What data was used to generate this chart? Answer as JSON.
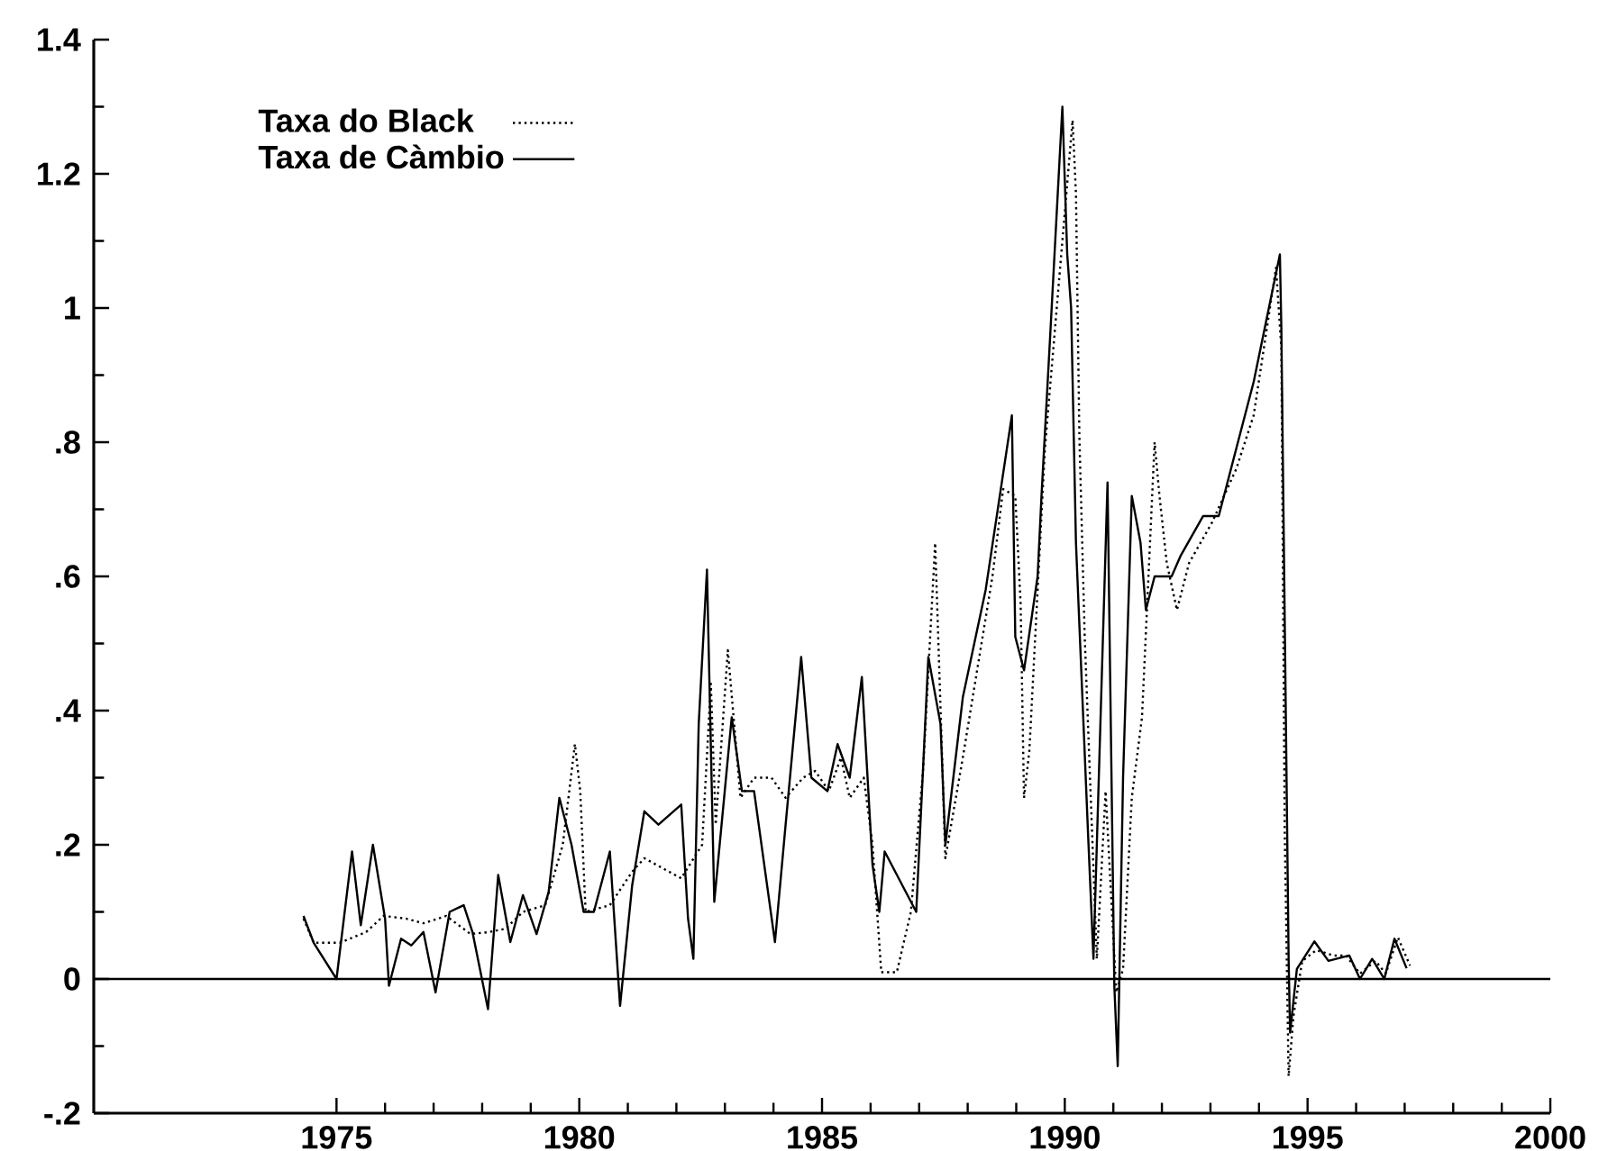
{
  "chart_data": {
    "type": "line",
    "xlim": [
      1970,
      2000
    ],
    "ylim": [
      -0.2,
      1.4
    ],
    "xticks": [
      1975,
      1980,
      1985,
      1990,
      1995,
      2000
    ],
    "yticks": [
      {
        "value": -0.2,
        "label": "-.2"
      },
      0,
      {
        "value": 0.2,
        "label": ".2"
      },
      {
        "value": 0.4,
        "label": ".4"
      },
      {
        "value": 0.6,
        "label": ".6"
      },
      {
        "value": 0.8,
        "label": ".8"
      },
      1,
      {
        "value": 1.2,
        "label": "1.2"
      },
      {
        "value": 1.4,
        "label": "1.4"
      }
    ],
    "legend": "top left",
    "grid": false,
    "ref_lines": [
      {
        "axis": "y",
        "value": 0,
        "color": "#000000",
        "line_style": "solid"
      }
    ],
    "series": [
      {
        "name": "Taxa do Black",
        "color": "#000000",
        "line_style": "dotted",
        "x": [
          1974.32,
          1974.53,
          1975.07,
          1975.61,
          1975.97,
          1976.43,
          1976.79,
          1977.26,
          1977.76,
          1978.15,
          1978.48,
          1978.84,
          1979.3,
          1979.66,
          1979.91,
          1980.02,
          1980.13,
          1980.63,
          1981.09,
          1981.34,
          1982.1,
          1982.53,
          1982.71,
          1982.81,
          1983.06,
          1983.32,
          1983.6,
          1983.96,
          1984.25,
          1984.61,
          1984.86,
          1985.14,
          1985.39,
          1985.57,
          1985.86,
          1986.04,
          1986.22,
          1986.54,
          1986.83,
          1987.08,
          1987.33,
          1987.54,
          1987.9,
          1988.51,
          1988.73,
          1988.98,
          1989.09,
          1989.16,
          1989.27,
          1989.59,
          1989.95,
          1990.16,
          1990.23,
          1990.3,
          1990.41,
          1990.66,
          1990.84,
          1991.06,
          1991.2,
          1991.38,
          1991.59,
          1991.85,
          1991.95,
          1992.1,
          1992.31,
          1992.56,
          1993.03,
          1993.53,
          1993.89,
          1994.35,
          1994.46,
          1994.53,
          1994.61,
          1994.71,
          1994.89,
          1995.18,
          1995.54,
          1995.79,
          1996.08,
          1996.4,
          1996.61,
          1996.86,
          1997.11
        ],
        "values": [
          0.09,
          0.054,
          0.054,
          0.07,
          0.094,
          0.09,
          0.083,
          0.094,
          0.067,
          0.07,
          0.075,
          0.1,
          0.11,
          0.2,
          0.35,
          0.28,
          0.1,
          0.11,
          0.16,
          0.18,
          0.15,
          0.2,
          0.44,
          0.23,
          0.49,
          0.27,
          0.3,
          0.3,
          0.27,
          0.3,
          0.31,
          0.28,
          0.33,
          0.27,
          0.3,
          0.2,
          0.01,
          0.01,
          0.1,
          0.31,
          0.65,
          0.18,
          0.33,
          0.6,
          0.73,
          0.72,
          0.56,
          0.27,
          0.34,
          0.79,
          1.1,
          1.28,
          1.17,
          0.81,
          0.51,
          0.03,
          0.28,
          -0.02,
          0.015,
          0.27,
          0.39,
          0.8,
          0.72,
          0.62,
          0.55,
          0.62,
          0.68,
          0.76,
          0.84,
          1.06,
          0.94,
          0.22,
          -0.145,
          -0.055,
          0.027,
          0.043,
          0.035,
          0.035,
          0.008,
          0.027,
          0.008,
          0.062,
          0.02
        ]
      },
      {
        "name": "Taxa de Càmbio",
        "color": "#000000",
        "line_style": "solid",
        "x": [
          1974.32,
          1974.53,
          1975.0,
          1975.32,
          1975.5,
          1975.75,
          1976.0,
          1976.08,
          1976.33,
          1976.54,
          1976.79,
          1977.04,
          1977.33,
          1977.62,
          1977.8,
          1978.12,
          1978.33,
          1978.58,
          1978.84,
          1979.12,
          1979.37,
          1979.59,
          1979.84,
          1980.09,
          1980.3,
          1980.63,
          1980.84,
          1981.09,
          1981.34,
          1981.63,
          1982.1,
          1982.24,
          1982.35,
          1982.46,
          1982.63,
          1982.78,
          1983.14,
          1983.35,
          1983.6,
          1984.03,
          1984.25,
          1984.57,
          1984.78,
          1985.11,
          1985.32,
          1985.57,
          1985.82,
          1986.04,
          1986.18,
          1986.29,
          1986.94,
          1987.19,
          1987.44,
          1987.54,
          1987.9,
          1988.37,
          1988.91,
          1988.98,
          1989.16,
          1989.44,
          1989.52,
          1989.7,
          1989.95,
          1990.05,
          1990.13,
          1990.23,
          1990.48,
          1990.59,
          1990.88,
          1991.02,
          1991.09,
          1991.2,
          1991.38,
          1991.56,
          1991.67,
          1991.85,
          1992.2,
          1992.38,
          1992.85,
          1993.17,
          1993.89,
          1994.43,
          1994.46,
          1994.61,
          1994.64,
          1994.78,
          1995.14,
          1995.43,
          1995.86,
          1996.08,
          1996.33,
          1996.58,
          1996.79,
          1997.04
        ],
        "values": [
          0.094,
          0.054,
          0.0,
          0.19,
          0.08,
          0.2,
          0.09,
          -0.01,
          0.06,
          0.05,
          0.07,
          -0.02,
          0.1,
          0.11,
          0.07,
          -0.045,
          0.155,
          0.055,
          0.125,
          0.067,
          0.13,
          0.27,
          0.2,
          0.1,
          0.1,
          0.19,
          -0.04,
          0.14,
          0.25,
          0.23,
          0.26,
          0.09,
          0.03,
          0.38,
          0.61,
          0.115,
          0.39,
          0.28,
          0.28,
          0.055,
          0.23,
          0.48,
          0.3,
          0.28,
          0.35,
          0.3,
          0.45,
          0.17,
          0.1,
          0.19,
          0.1,
          0.48,
          0.38,
          0.2,
          0.42,
          0.58,
          0.84,
          0.51,
          0.46,
          0.6,
          0.72,
          0.96,
          1.3,
          1.08,
          1.0,
          0.65,
          0.215,
          0.03,
          0.74,
          -0.01,
          -0.13,
          0.3,
          0.72,
          0.65,
          0.55,
          0.6,
          0.6,
          0.63,
          0.69,
          0.69,
          0.89,
          1.08,
          0.97,
          0.03,
          -0.08,
          0.015,
          0.056,
          0.027,
          0.035,
          0.0,
          0.03,
          0.0,
          0.06,
          0.016
        ]
      }
    ]
  }
}
